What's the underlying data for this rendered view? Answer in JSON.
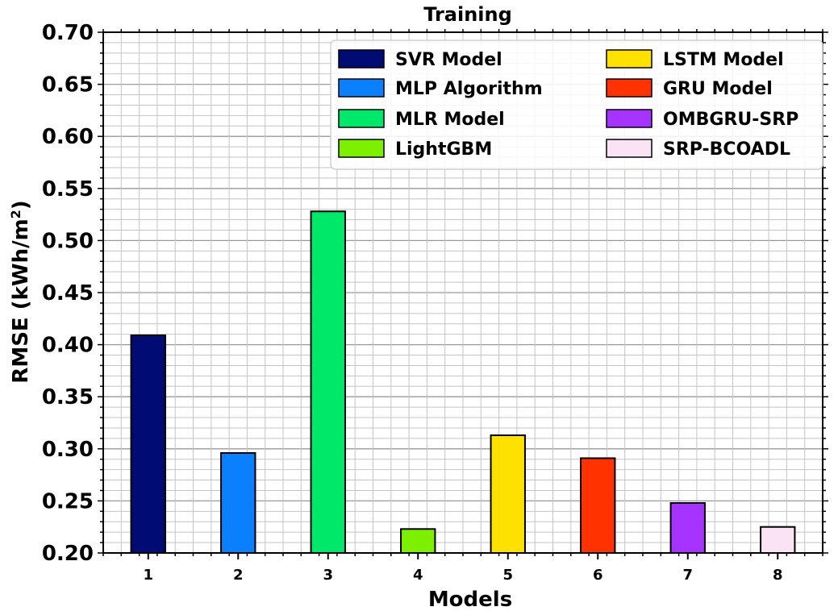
{
  "chart_data": {
    "type": "bar",
    "title": "Training",
    "xlabel": "Models",
    "ylabel": "RMSE (kWh/m",
    "ylabel_superscript": "2",
    "ylabel_suffix": ")",
    "categories": [
      "1",
      "2",
      "3",
      "4",
      "5",
      "6",
      "7",
      "8"
    ],
    "values": [
      0.409,
      0.296,
      0.528,
      0.223,
      0.313,
      0.291,
      0.248,
      0.225
    ],
    "series_names": [
      "SVR Model",
      "MLP Algorithm",
      "MLR Model",
      "LightGBM",
      "LSTM Model",
      "GRU Model",
      "OMBGRU-SRP",
      "SRP-BCOADL"
    ],
    "colors": [
      "#000c73",
      "#0a80ff",
      "#00e86a",
      "#7df000",
      "#ffe100",
      "#ff3200",
      "#a633ff",
      "#fbe3f6"
    ],
    "ylim": [
      0.2,
      0.7
    ],
    "yticks": [
      "0.20",
      "0.25",
      "0.30",
      "0.35",
      "0.40",
      "0.45",
      "0.50",
      "0.55",
      "0.60",
      "0.65",
      "0.70"
    ],
    "grid": true,
    "legend_position": "top-right",
    "legend_columns": 2
  }
}
